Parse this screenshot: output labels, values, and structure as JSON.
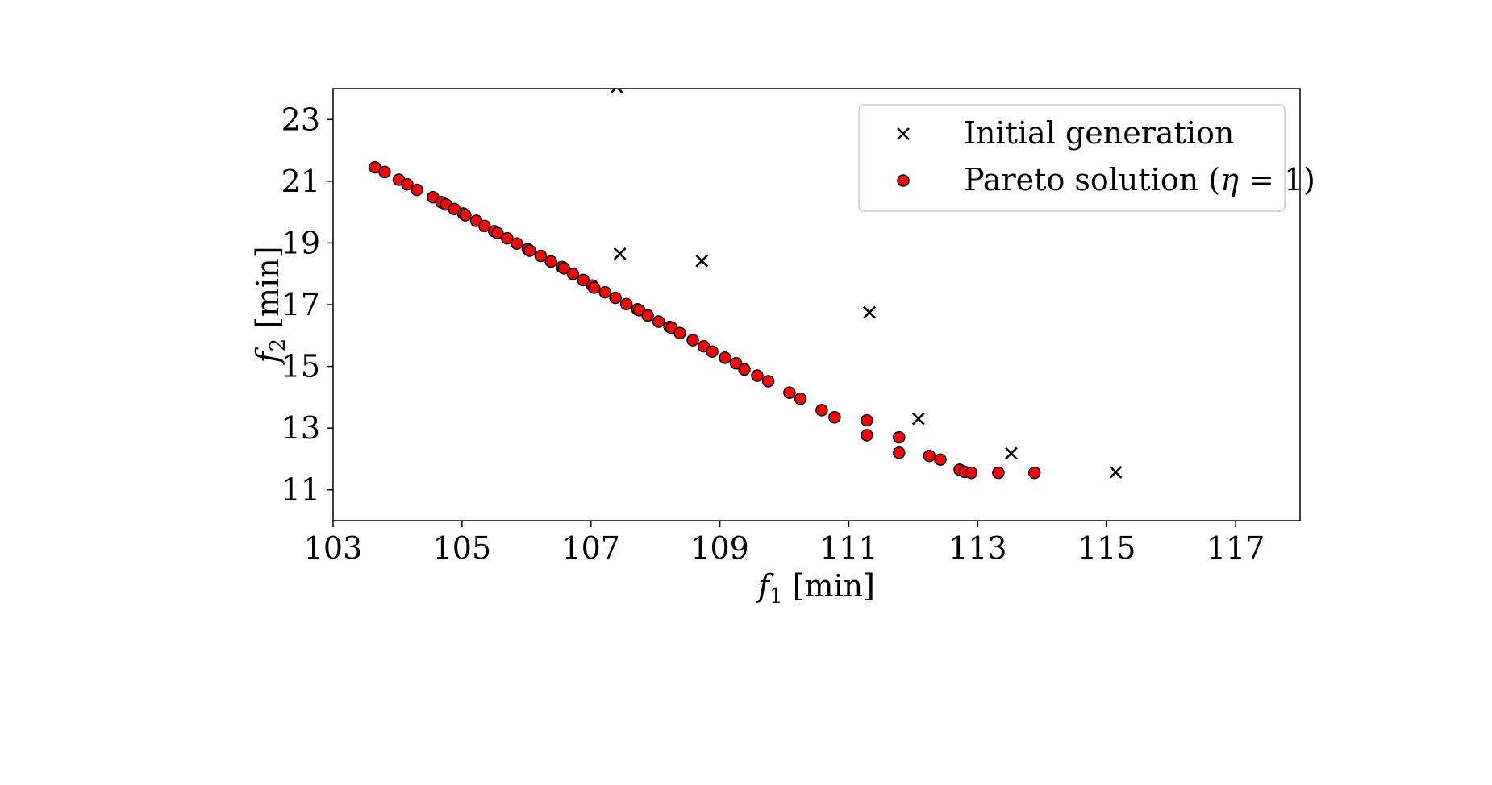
{
  "chart_data": {
    "type": "scatter",
    "title": "",
    "xlabel": {
      "var": "f",
      "sub": "1",
      "unit": " [min]"
    },
    "ylabel": {
      "var": "f",
      "sub": "2",
      "unit": " [min]"
    },
    "xlim": [
      103,
      118
    ],
    "ylim": [
      10,
      24
    ],
    "xticks": [
      "103",
      "105",
      "107",
      "109",
      "111",
      "113",
      "115",
      "117"
    ],
    "yticks": [
      "11",
      "13",
      "15",
      "17",
      "19",
      "21",
      "23"
    ],
    "grid": false,
    "legend_position": "top-right",
    "series": [
      {
        "name": "Initial generation",
        "marker": "x",
        "color": "#000000",
        "x": [
          107.4,
          107.45,
          108.72,
          111.32,
          112.08,
          113.52,
          115.14
        ],
        "y": [
          24.05,
          18.65,
          18.42,
          16.75,
          13.3,
          12.18,
          11.57
        ]
      },
      {
        "name": "Pareto solution",
        "name_suffix": " = 1)",
        "name_greek": "η",
        "marker": "o",
        "color": "#ff0000",
        "x": [
          103.65,
          103.8,
          104.02,
          104.15,
          104.3,
          104.55,
          104.68,
          104.75,
          104.88,
          105.02,
          105.05,
          105.22,
          105.35,
          105.5,
          105.55,
          105.7,
          105.85,
          106.02,
          106.05,
          106.22,
          106.38,
          106.55,
          106.58,
          106.72,
          106.88,
          107.02,
          107.05,
          107.22,
          107.38,
          107.55,
          107.72,
          107.75,
          107.88,
          108.05,
          108.22,
          108.25,
          108.38,
          108.58,
          108.75,
          108.88,
          109.08,
          109.25,
          109.38,
          109.58,
          109.75,
          110.08,
          110.25,
          110.58,
          110.78,
          111.28,
          111.28,
          111.78,
          111.78,
          112.25,
          112.42,
          112.72,
          112.8,
          112.9,
          113.32,
          113.88
        ],
        "y": [
          21.45,
          21.3,
          21.05,
          20.9,
          20.72,
          20.48,
          20.32,
          20.25,
          20.1,
          19.95,
          19.9,
          19.72,
          19.55,
          19.38,
          19.32,
          19.15,
          18.98,
          18.8,
          18.75,
          18.58,
          18.4,
          18.22,
          18.18,
          18.0,
          17.8,
          17.62,
          17.55,
          17.4,
          17.22,
          17.02,
          16.85,
          16.82,
          16.65,
          16.45,
          16.28,
          16.25,
          16.08,
          15.85,
          15.65,
          15.48,
          15.28,
          15.1,
          14.9,
          14.7,
          14.52,
          14.15,
          13.95,
          13.58,
          13.35,
          13.25,
          12.77,
          12.7,
          12.2,
          12.1,
          11.98,
          11.65,
          11.58,
          11.55,
          11.55,
          11.55
        ]
      }
    ]
  }
}
